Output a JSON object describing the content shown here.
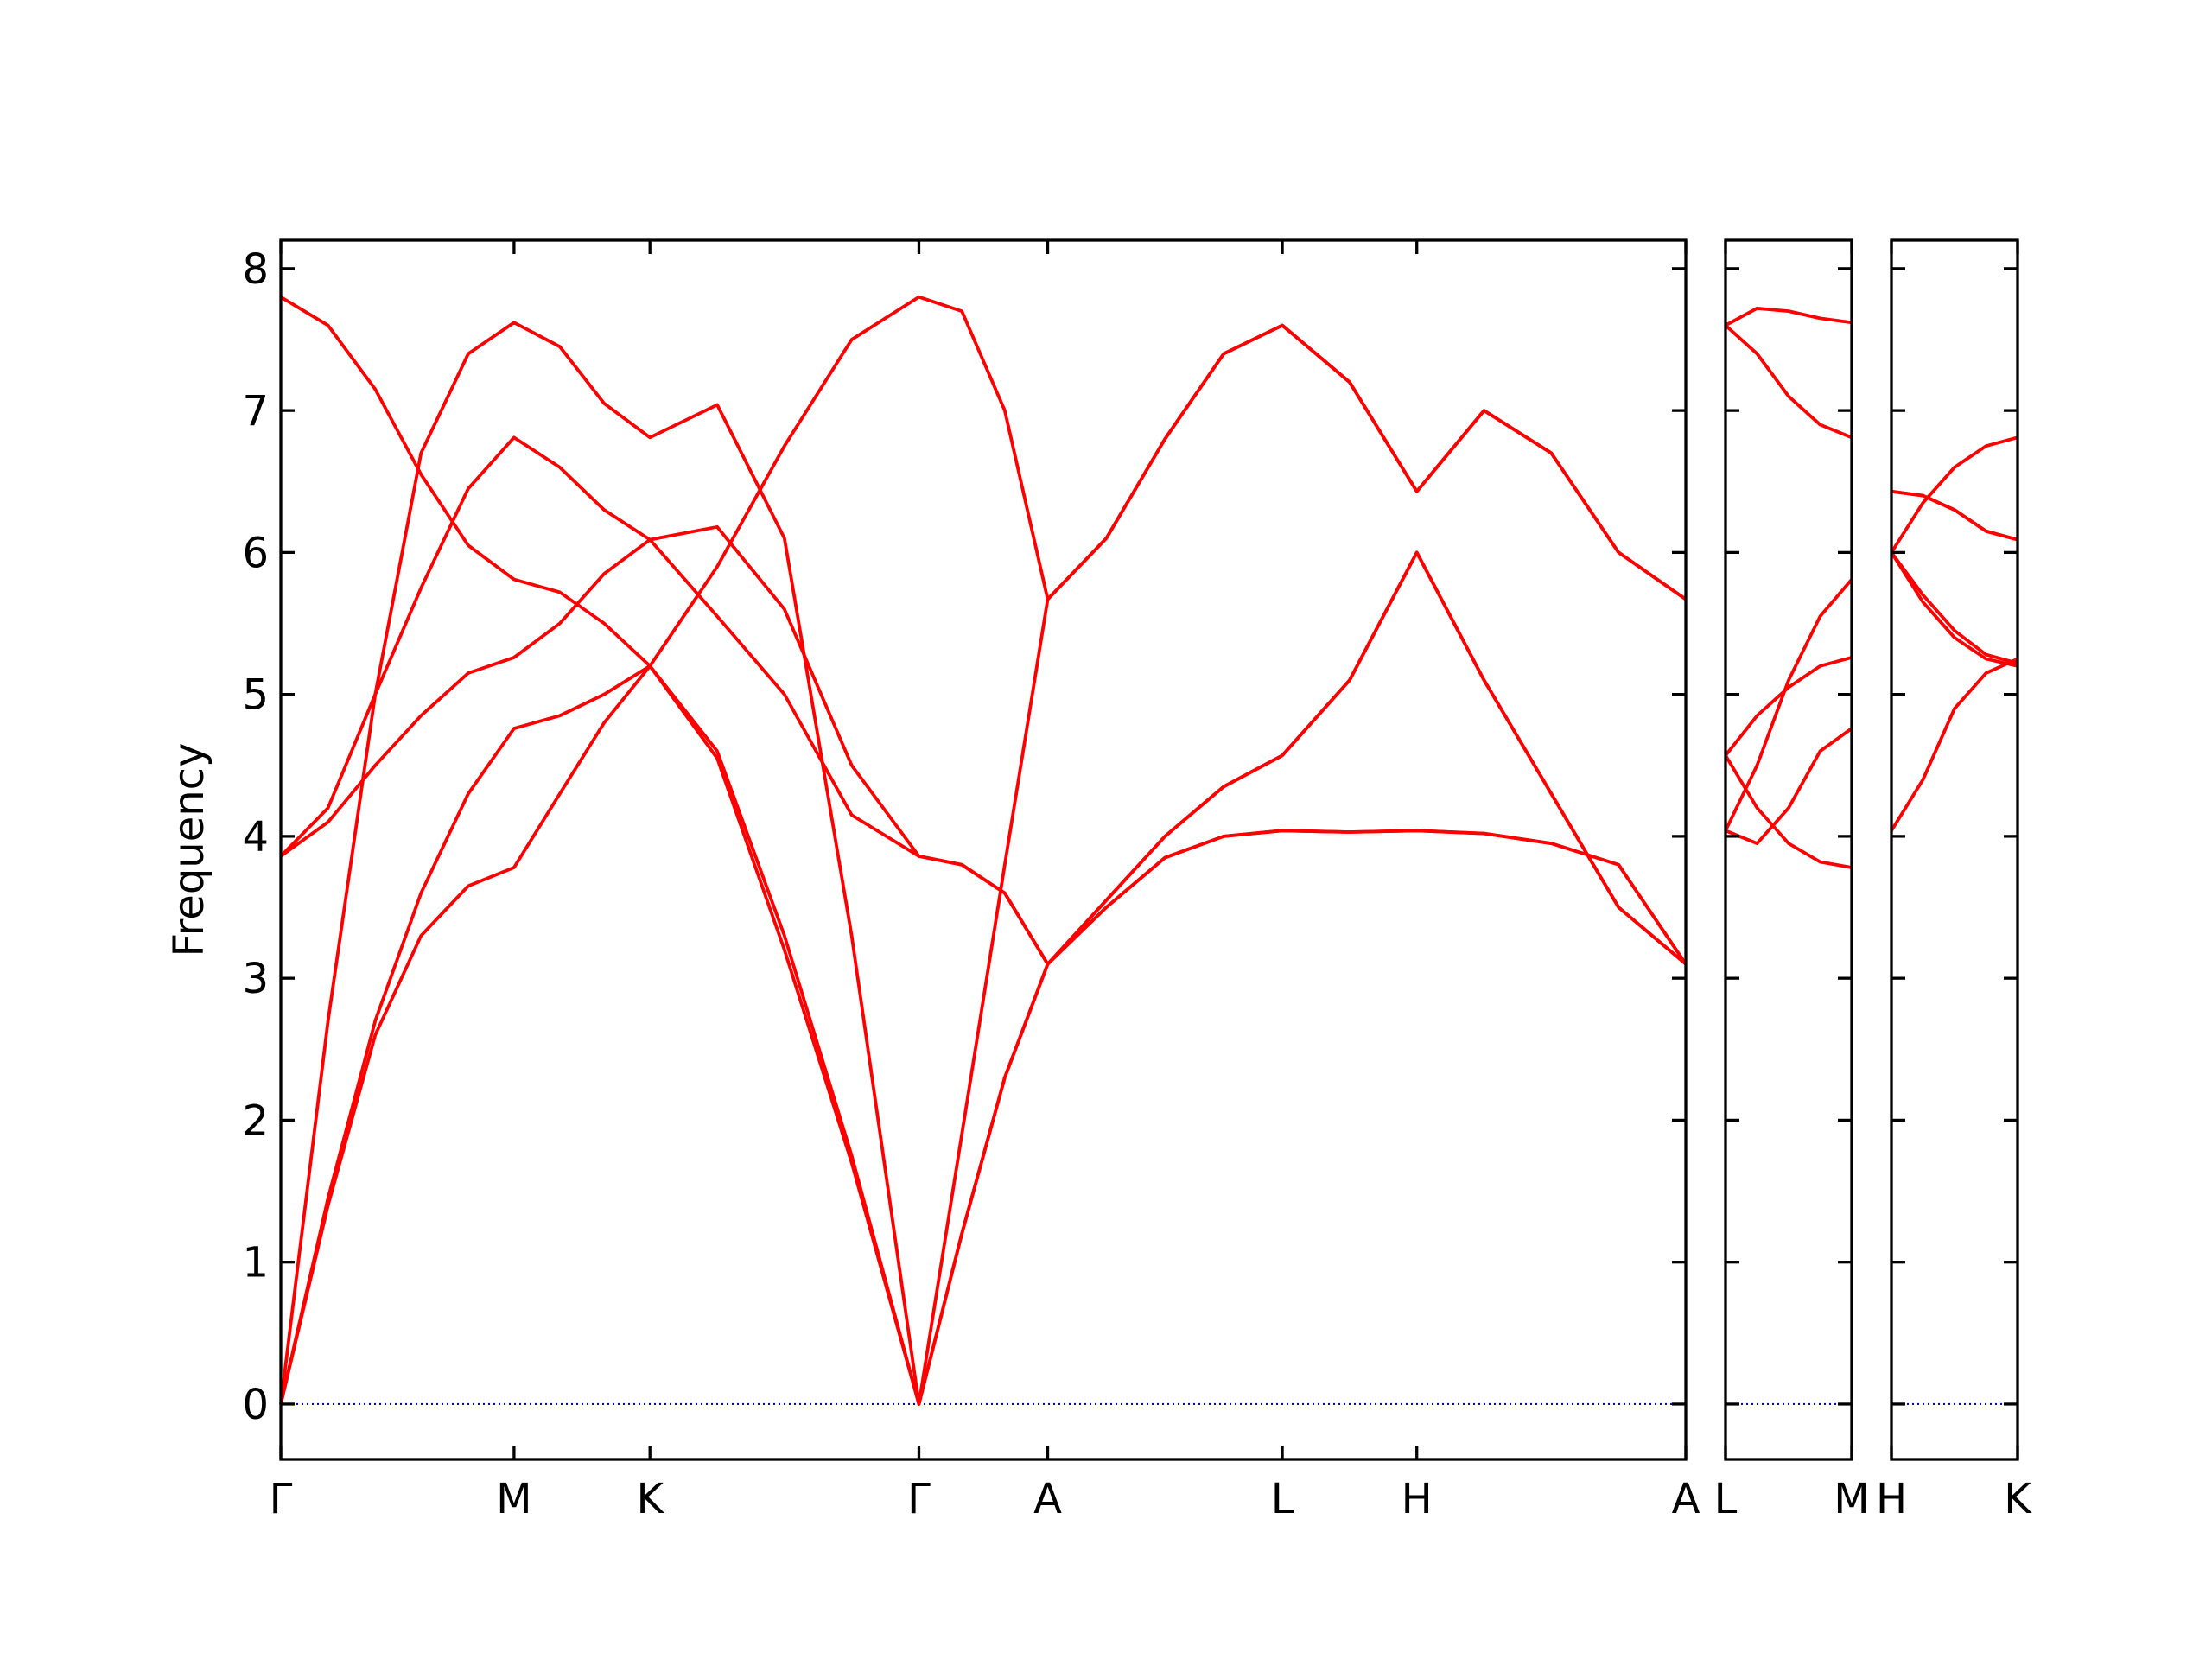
{
  "chart_data": [
    {
      "type": "line",
      "ylabel": "Frequency",
      "x": [
        0,
        0.33,
        0.66,
        0.98,
        1.31,
        1.63,
        1.95,
        2.26,
        2.58,
        3.05,
        3.52,
        3.99,
        4.46,
        4.76,
        5.06,
        5.36,
        5.77,
        6.18,
        6.59,
        7.0,
        7.47,
        7.94,
        8.41,
        8.88,
        9.35,
        9.82
      ],
      "xlim": [
        0,
        9.82
      ],
      "xticks": [
        {
          "value": 0,
          "label": "Γ"
        },
        {
          "value": 1.63,
          "label": "M"
        },
        {
          "value": 2.58,
          "label": "K"
        },
        {
          "value": 4.46,
          "label": "Γ"
        },
        {
          "value": 5.36,
          "label": "A"
        },
        {
          "value": 7.0,
          "label": "L"
        },
        {
          "value": 7.94,
          "label": "H"
        },
        {
          "value": 9.82,
          "label": "A"
        }
      ],
      "ylim": [
        -0.39,
        8.2
      ],
      "yticks": [
        0,
        1,
        2,
        3,
        4,
        5,
        6,
        7,
        8
      ],
      "series": [
        {
          "color": "#ff0000",
          "values": [
            0,
            1.4,
            2.6,
            3.3,
            3.65,
            3.78,
            4.3,
            4.8,
            5.2,
            4.55,
            3.2,
            1.7,
            0,
            1.2,
            2.3,
            3.1,
            3.5,
            3.85,
            4.0,
            4.04,
            4.03,
            4.04,
            4.02,
            3.95,
            3.8,
            3.1
          ]
        },
        {
          "color": "#ff0000",
          "values": [
            0,
            1.45,
            2.7,
            3.6,
            4.3,
            4.76,
            4.85,
            5.0,
            5.2,
            4.6,
            3.3,
            1.75,
            0,
            1.2,
            2.3,
            3.1,
            3.55,
            4.0,
            4.35,
            4.57,
            5.1,
            6.0,
            5.1,
            4.3,
            3.5,
            3.1
          ]
        },
        {
          "color": "#ff0000",
          "values": [
            0,
            2.7,
            5.0,
            6.7,
            7.4,
            7.62,
            7.45,
            7.05,
            6.81,
            7.04,
            6.1,
            3.3,
            0,
            1.9,
            3.8,
            5.67,
            6.1,
            6.8,
            7.4,
            7.6,
            7.2,
            6.43,
            7.0,
            6.7,
            6.0,
            5.67
          ]
        },
        {
          "color": "#ff0000",
          "values": [
            3.86,
            4.2,
            5.0,
            5.75,
            6.45,
            6.81,
            6.6,
            6.3,
            6.09,
            5.55,
            5.0,
            4.15,
            3.86,
            3.8,
            3.6,
            3.1,
            3.5,
            3.85,
            4.0,
            4.04,
            4.03,
            4.04,
            4.02,
            3.95,
            3.8,
            3.1
          ]
        },
        {
          "color": "#ff0000",
          "values": [
            3.86,
            4.1,
            4.5,
            4.85,
            5.15,
            5.26,
            5.5,
            5.85,
            6.09,
            6.18,
            5.6,
            4.5,
            3.86,
            3.8,
            3.6,
            3.1,
            3.55,
            4.0,
            4.35,
            4.57,
            5.1,
            6.0,
            5.1,
            4.3,
            3.5,
            3.1
          ]
        },
        {
          "color": "#ff0000",
          "values": [
            7.8,
            7.6,
            7.15,
            6.55,
            6.05,
            5.81,
            5.72,
            5.5,
            5.2,
            5.9,
            6.75,
            7.5,
            7.8,
            7.7,
            7.0,
            5.67,
            6.1,
            6.8,
            7.4,
            7.6,
            7.2,
            6.43,
            7.0,
            6.7,
            6.0,
            5.67
          ]
        }
      ]
    },
    {
      "type": "line",
      "x": [
        0,
        0.22,
        0.44,
        0.66,
        0.88
      ],
      "xlim": [
        0,
        0.88
      ],
      "xticks": [
        {
          "value": 0,
          "label": "L"
        },
        {
          "value": 0.88,
          "label": "M"
        }
      ],
      "ylim": [
        -0.39,
        8.2
      ],
      "yticks": [
        0,
        1,
        2,
        3,
        4,
        5,
        6,
        7,
        8
      ],
      "series": [
        {
          "color": "#ff0000",
          "values": [
            4.04,
            3.95,
            4.2,
            4.6,
            4.76
          ]
        },
        {
          "color": "#ff0000",
          "values": [
            4.04,
            4.5,
            5.1,
            5.55,
            5.81
          ]
        },
        {
          "color": "#ff0000",
          "values": [
            4.57,
            4.85,
            5.05,
            5.2,
            5.26
          ]
        },
        {
          "color": "#ff0000",
          "values": [
            4.57,
            4.2,
            3.95,
            3.82,
            3.78
          ]
        },
        {
          "color": "#ff0000",
          "values": [
            7.6,
            7.72,
            7.7,
            7.65,
            7.62
          ]
        },
        {
          "color": "#ff0000",
          "values": [
            7.6,
            7.4,
            7.1,
            6.9,
            6.81
          ]
        }
      ]
    },
    {
      "type": "line",
      "x": [
        0,
        0.22,
        0.44,
        0.66,
        0.88
      ],
      "xlim": [
        0,
        0.88
      ],
      "xticks": [
        {
          "value": 0,
          "label": "H"
        },
        {
          "value": 0.88,
          "label": "K"
        }
      ],
      "ylim": [
        -0.39,
        8.2
      ],
      "yticks": [
        0,
        1,
        2,
        3,
        4,
        5,
        6,
        7,
        8
      ],
      "series": [
        {
          "color": "#ff0000",
          "values": [
            4.04,
            4.4,
            4.9,
            5.15,
            5.25
          ]
        },
        {
          "color": "#ff0000",
          "values": [
            6.0,
            5.65,
            5.4,
            5.25,
            5.2
          ]
        },
        {
          "color": "#ff0000",
          "values": [
            6.0,
            5.7,
            5.45,
            5.28,
            5.22
          ]
        },
        {
          "color": "#ff0000",
          "values": [
            6.0,
            6.35,
            6.6,
            6.75,
            6.81
          ]
        },
        {
          "color": "#ff0000",
          "values": [
            6.43,
            6.4,
            6.3,
            6.15,
            6.09
          ]
        },
        {
          "color": "#ff0000",
          "values": [
            6.43,
            6.4,
            6.3,
            6.15,
            6.09
          ]
        }
      ]
    }
  ]
}
